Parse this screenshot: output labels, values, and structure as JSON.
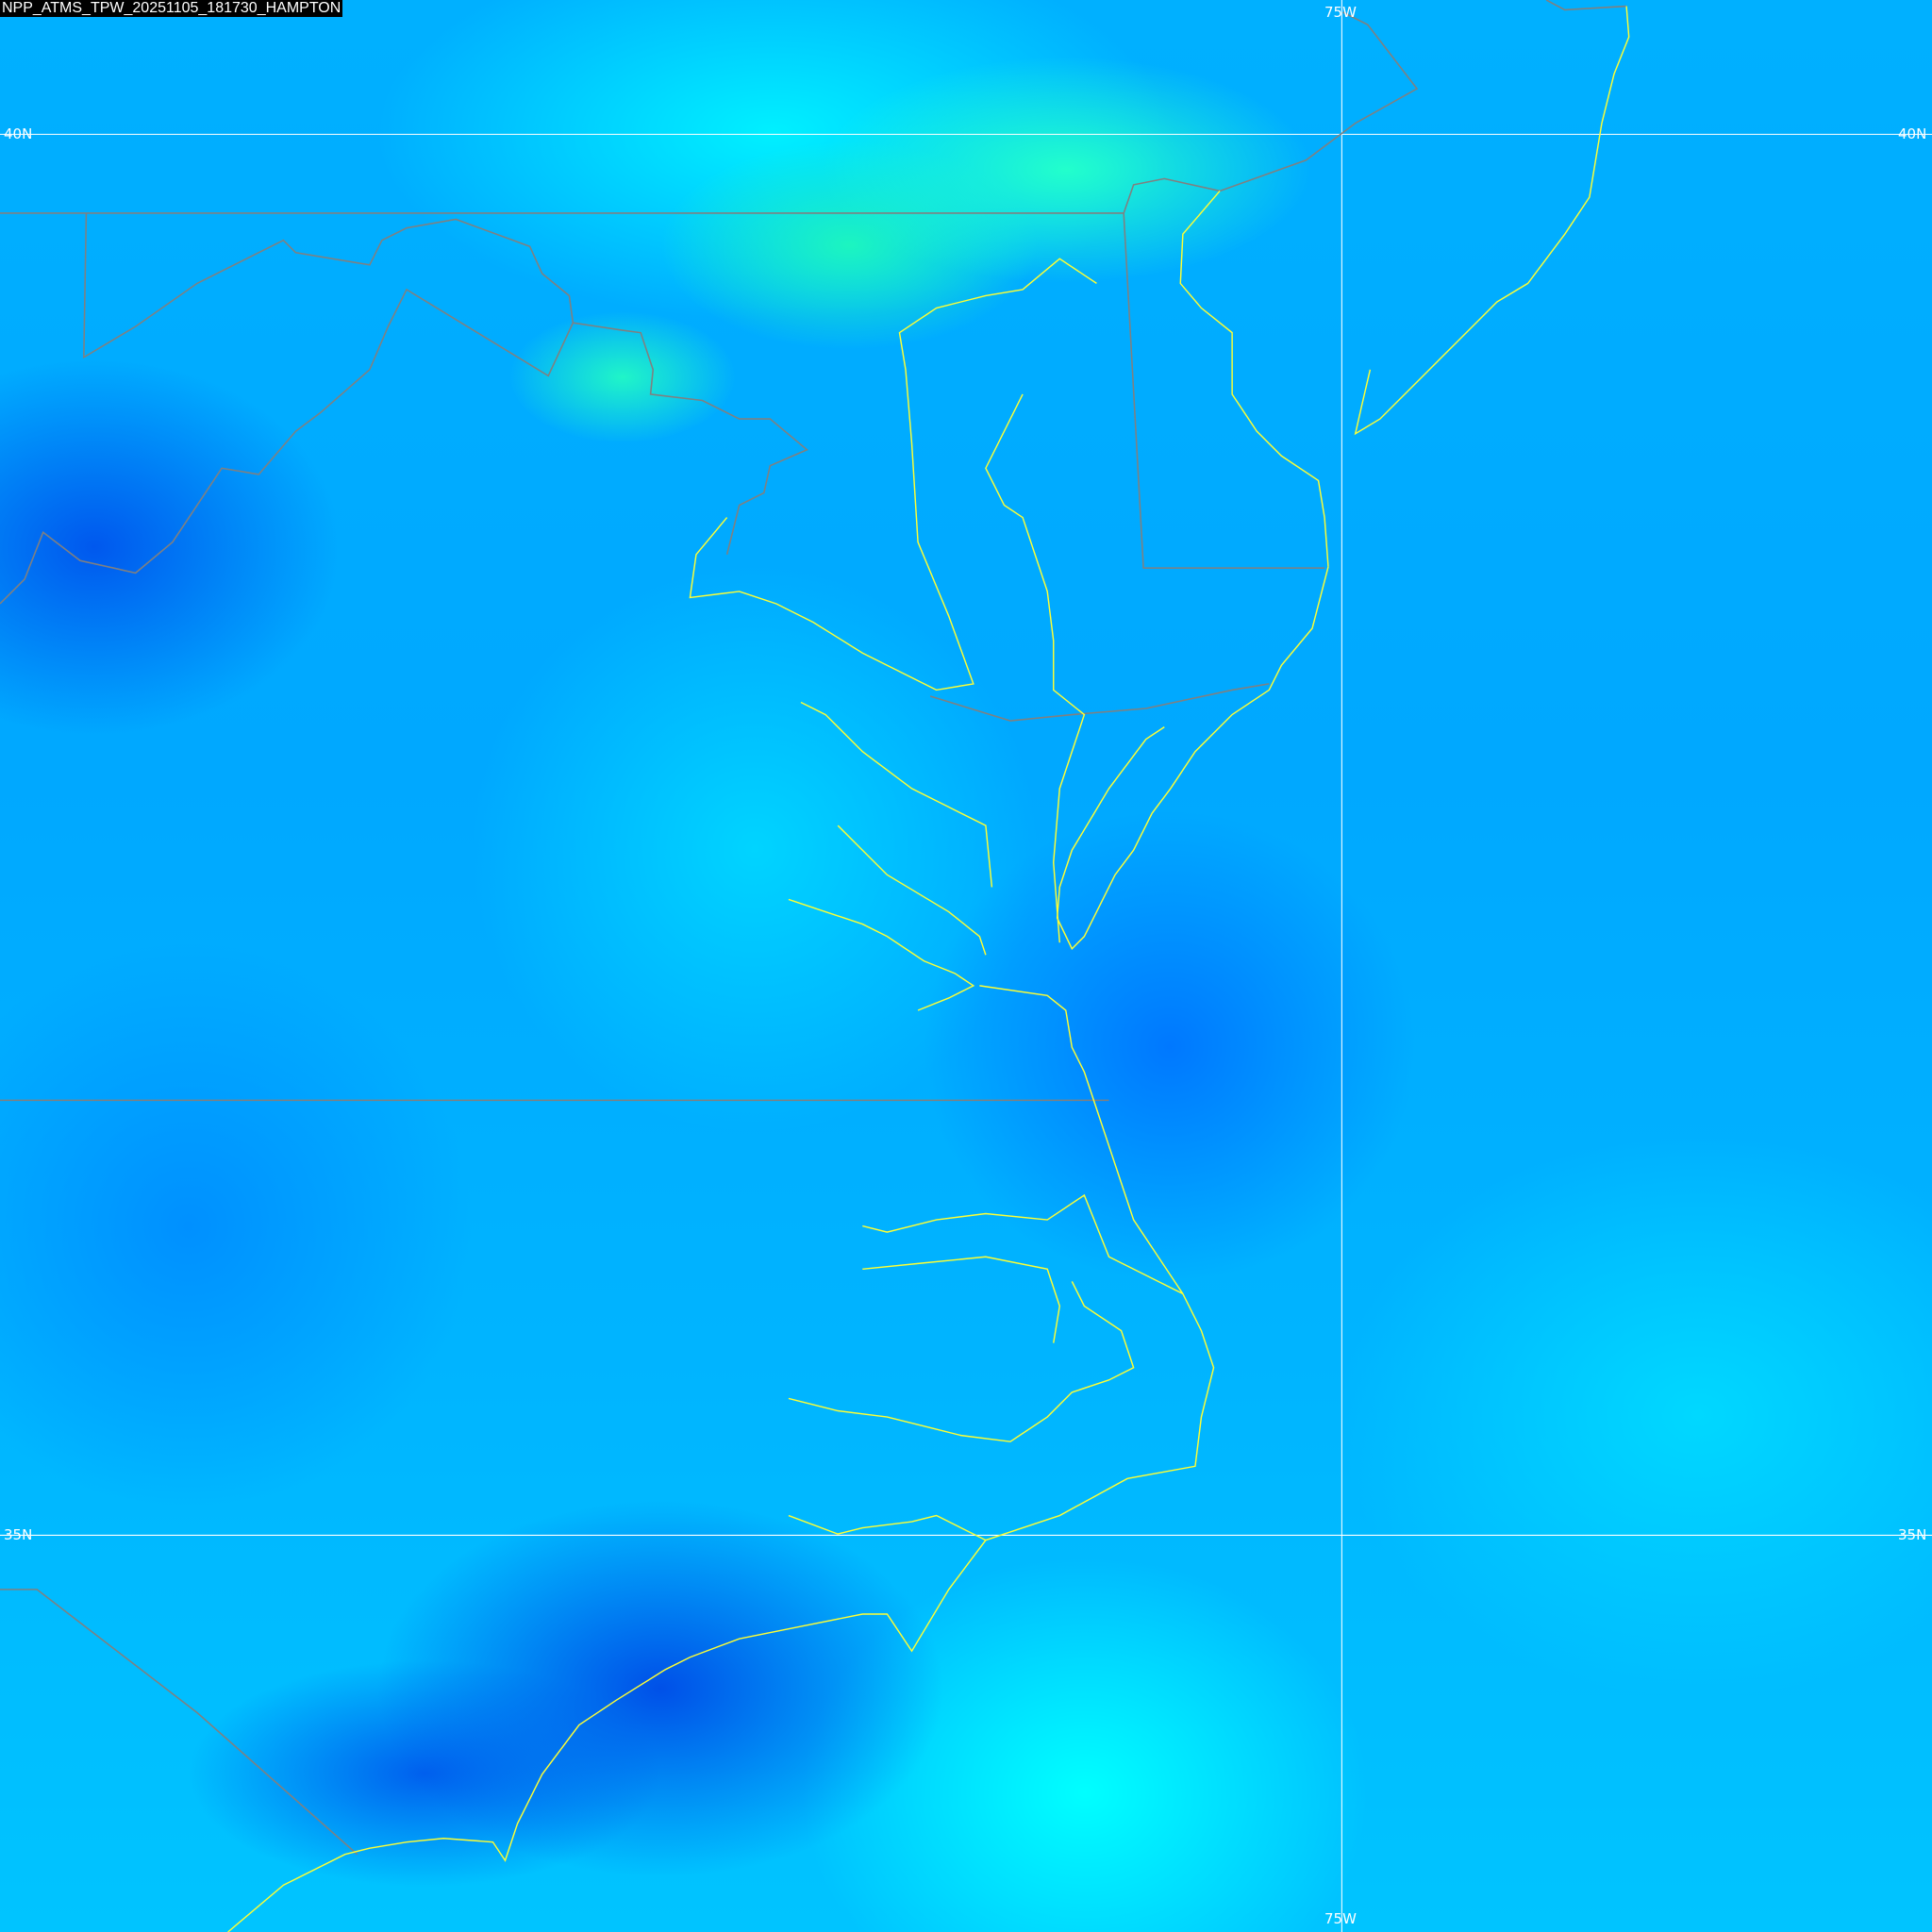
{
  "title": "NPP_ATMS_TPW_20251105_181730_HAMPTON",
  "graticule": {
    "lat_labels": [
      "40N",
      "35N"
    ],
    "lon_labels": [
      "75W"
    ]
  },
  "colors": {
    "coastline": "#ffff33",
    "state_borders": "#808080",
    "graticule": "#ffffff",
    "low_tpw": "#0050e8",
    "mid_tpw": "#00b4ff",
    "high_tpw": "#22ffcc"
  }
}
